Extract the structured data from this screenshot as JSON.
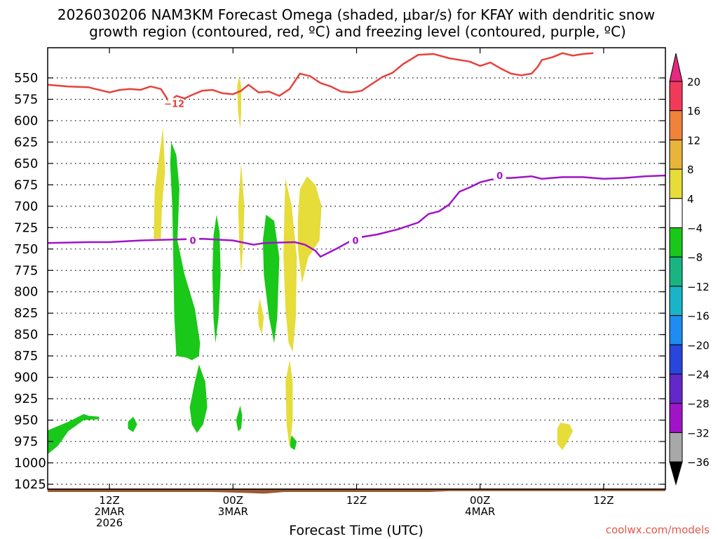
{
  "chart_data": {
    "type": "time-height",
    "title_line1": "2026030206 NAM3KM Forecast Omega (shaded, μbar/s) for KFAY with dendritic snow",
    "title_line2": "growth region (contoured, red, ºC) and freezing level (contoured, purple, ºC)",
    "xlabel": "Forecast Time (UTC)",
    "credit": "coolwx.com/models",
    "x_range_hours": [
      -3,
      57
    ],
    "y_range_mb": [
      520,
      1035
    ],
    "y_ticks": [
      550,
      575,
      600,
      625,
      650,
      675,
      700,
      725,
      750,
      775,
      800,
      825,
      850,
      875,
      900,
      925,
      950,
      975,
      1000,
      1025
    ],
    "x_ticks": [
      {
        "hour": 3,
        "lines": [
          "12Z",
          "2MAR",
          "2026"
        ]
      },
      {
        "hour": 15,
        "lines": [
          "00Z",
          "3MAR"
        ]
      },
      {
        "hour": 27,
        "lines": [
          "12Z"
        ]
      },
      {
        "hour": 39,
        "lines": [
          "00Z",
          "4MAR"
        ]
      },
      {
        "hour": 51,
        "lines": [
          "12Z"
        ]
      }
    ],
    "colorbar": {
      "labels": [
        "20",
        "16",
        "12",
        "8",
        "4",
        "−4",
        "−8",
        "−12",
        "−16",
        "−20",
        "−24",
        "−28",
        "−32",
        "−36"
      ],
      "colors": [
        "#f03a5a",
        "#f0823a",
        "#e8b43a",
        "#e6dc3a",
        "#ffffff",
        "#19c819",
        "#19b482",
        "#19b4c8",
        "#1e8cf0",
        "#2846dc",
        "#6428c8",
        "#a014c8",
        "#a8a8a8"
      ],
      "top_arrow_color": "#e6287f",
      "bottom_arrow_color": "#000000"
    },
    "contour_labels": {
      "dgz": "−12",
      "freezing": "0"
    },
    "dgz_minus12_line": {
      "color": "#e8413c",
      "points": [
        [
          -3,
          558
        ],
        [
          -1,
          560
        ],
        [
          1,
          561
        ],
        [
          2,
          564
        ],
        [
          3,
          567
        ],
        [
          4,
          564
        ],
        [
          5,
          563
        ],
        [
          6,
          564
        ],
        [
          7,
          560
        ],
        [
          8,
          563
        ],
        [
          8.8,
          578
        ],
        [
          9.5,
          571
        ],
        [
          10.3,
          574
        ],
        [
          11,
          570
        ],
        [
          12,
          565
        ],
        [
          13,
          564
        ],
        [
          14,
          568
        ],
        [
          15,
          569
        ],
        [
          15.8,
          565
        ],
        [
          16.5,
          558
        ],
        [
          17.5,
          567
        ],
        [
          18.5,
          566
        ],
        [
          19.5,
          571
        ],
        [
          20.5,
          563
        ],
        [
          21.5,
          545
        ],
        [
          22.5,
          548
        ],
        [
          23.5,
          556
        ],
        [
          24.5,
          560
        ],
        [
          25.5,
          566
        ],
        [
          26.5,
          567
        ],
        [
          27.5,
          565
        ],
        [
          28.5,
          557
        ],
        [
          29.5,
          549
        ],
        [
          30.5,
          544
        ],
        [
          31.5,
          534
        ],
        [
          33,
          523
        ],
        [
          34.5,
          522
        ],
        [
          36,
          527
        ],
        [
          38,
          531
        ],
        [
          39,
          536
        ],
        [
          40,
          532
        ],
        [
          41,
          539
        ],
        [
          42,
          545
        ],
        [
          43,
          547
        ],
        [
          44,
          545
        ],
        [
          44.6,
          537
        ],
        [
          45,
          529
        ],
        [
          46,
          526
        ],
        [
          47,
          521
        ],
        [
          48,
          524
        ],
        [
          49,
          522
        ],
        [
          50,
          521
        ]
      ]
    },
    "freezing_line": {
      "color": "#a014c8",
      "points": [
        [
          -3,
          743
        ],
        [
          1,
          742
        ],
        [
          3,
          742
        ],
        [
          6,
          740
        ],
        [
          9,
          739
        ],
        [
          12,
          738
        ],
        [
          15,
          740
        ],
        [
          17,
          745
        ],
        [
          18,
          743
        ],
        [
          21,
          742
        ],
        [
          22,
          745
        ],
        [
          23,
          752
        ],
        [
          23.5,
          759
        ],
        [
          25,
          750
        ],
        [
          27,
          737
        ],
        [
          29,
          733
        ],
        [
          31,
          727
        ],
        [
          32,
          723
        ],
        [
          33,
          719
        ],
        [
          34,
          709
        ],
        [
          35,
          706
        ],
        [
          36,
          698
        ],
        [
          37,
          683
        ],
        [
          38,
          678
        ],
        [
          39,
          672
        ],
        [
          40,
          669
        ],
        [
          41,
          667
        ],
        [
          42,
          667
        ],
        [
          44,
          665
        ],
        [
          45,
          668
        ],
        [
          47,
          666
        ],
        [
          49,
          666
        ],
        [
          51,
          668
        ],
        [
          53,
          667
        ],
        [
          55,
          665
        ],
        [
          57,
          664
        ]
      ]
    },
    "omega_regions": [
      {
        "color": "#19c819",
        "points": [
          [
            -3,
            962
          ],
          [
            -1,
            952
          ],
          [
            0.5,
            943
          ],
          [
            1,
            945
          ],
          [
            2,
            946
          ],
          [
            2,
            949
          ],
          [
            0.5,
            950
          ],
          [
            -1,
            963
          ],
          [
            -2,
            980
          ],
          [
            -3,
            990
          ]
        ]
      },
      {
        "color": "#19c819",
        "points": [
          [
            4.8,
            952
          ],
          [
            5.3,
            946
          ],
          [
            5.7,
            955
          ],
          [
            5.3,
            964
          ],
          [
            4.8,
            960
          ]
        ]
      },
      {
        "color": "#19c819",
        "points": [
          [
            9,
            625
          ],
          [
            9.5,
            640
          ],
          [
            9.8,
            680
          ],
          [
            9.6,
            740
          ],
          [
            10.3,
            780
          ],
          [
            11.3,
            820
          ],
          [
            11.8,
            860
          ],
          [
            11.7,
            875
          ],
          [
            11,
            880
          ],
          [
            10.5,
            877
          ],
          [
            9.5,
            875
          ],
          [
            9.3,
            830
          ],
          [
            9.2,
            760
          ],
          [
            9.1,
            700
          ],
          [
            8.9,
            650
          ]
        ]
      },
      {
        "color": "#19c819",
        "points": [
          [
            11.7,
            885
          ],
          [
            12.3,
            905
          ],
          [
            12.5,
            935
          ],
          [
            12.1,
            955
          ],
          [
            11.5,
            965
          ],
          [
            11,
            955
          ],
          [
            10.8,
            935
          ],
          [
            11.3,
            905
          ]
        ]
      },
      {
        "color": "#19c819",
        "points": [
          [
            13.4,
            710
          ],
          [
            13.7,
            730
          ],
          [
            13.8,
            780
          ],
          [
            13.6,
            830
          ],
          [
            13.3,
            860
          ],
          [
            13.1,
            830
          ],
          [
            13,
            780
          ],
          [
            13.1,
            735
          ]
        ]
      },
      {
        "color": "#19c819",
        "points": [
          [
            15.7,
            933
          ],
          [
            15.9,
            945
          ],
          [
            15.8,
            960
          ],
          [
            15.5,
            963
          ],
          [
            15.3,
            950
          ]
        ]
      },
      {
        "color": "#19c819",
        "points": [
          [
            18.2,
            710
          ],
          [
            19,
            717
          ],
          [
            19.5,
            760
          ],
          [
            19.3,
            830
          ],
          [
            19,
            860
          ],
          [
            18.5,
            830
          ],
          [
            18,
            780
          ],
          [
            17.9,
            740
          ]
        ]
      },
      {
        "color": "#19c819",
        "points": [
          [
            20.7,
            968
          ],
          [
            21.2,
            975
          ],
          [
            21,
            985
          ],
          [
            20.6,
            982
          ],
          [
            20.5,
            975
          ]
        ]
      },
      {
        "color": "#e6dc3a",
        "points": [
          [
            7.4,
            680
          ],
          [
            8.2,
            608
          ],
          [
            8.4,
            660
          ],
          [
            8.1,
            700
          ],
          [
            8,
            738
          ],
          [
            7.3,
            738
          ]
        ]
      },
      {
        "color": "#e6dc3a",
        "points": [
          [
            15.6,
            548
          ],
          [
            15.8,
            560
          ],
          [
            15.8,
            590
          ],
          [
            15.7,
            610
          ],
          [
            15.5,
            590
          ],
          [
            15.4,
            560
          ]
        ]
      },
      {
        "color": "#e6dc3a",
        "points": [
          [
            15.8,
            650
          ],
          [
            16.1,
            700
          ],
          [
            16,
            740
          ],
          [
            15.8,
            780
          ],
          [
            15.6,
            740
          ],
          [
            15.5,
            700
          ]
        ]
      },
      {
        "color": "#e6dc3a",
        "points": [
          [
            17.6,
            808
          ],
          [
            18,
            830
          ],
          [
            17.8,
            850
          ],
          [
            17.5,
            840
          ],
          [
            17.4,
            822
          ]
        ]
      },
      {
        "color": "#e6dc3a",
        "points": [
          [
            20.1,
            668
          ],
          [
            20.7,
            700
          ],
          [
            21.2,
            760
          ],
          [
            21.1,
            830
          ],
          [
            20.8,
            870
          ],
          [
            20.4,
            860
          ],
          [
            20.1,
            820
          ],
          [
            19.9,
            760
          ],
          [
            20,
            700
          ]
        ]
      },
      {
        "color": "#e6dc3a",
        "points": [
          [
            21.5,
            680
          ],
          [
            22.2,
            665
          ],
          [
            23,
            675
          ],
          [
            23.6,
            700
          ],
          [
            23.4,
            740
          ],
          [
            22.3,
            760
          ],
          [
            21.7,
            790
          ],
          [
            21.3,
            750
          ],
          [
            21.3,
            715
          ]
        ]
      },
      {
        "color": "#e6dc3a",
        "points": [
          [
            20.5,
            880
          ],
          [
            20.8,
            905
          ],
          [
            20.8,
            950
          ],
          [
            20.5,
            983
          ],
          [
            20.2,
            955
          ],
          [
            20.1,
            905
          ]
        ]
      },
      {
        "color": "#e6dc3a",
        "points": [
          [
            46.5,
            960
          ],
          [
            46.8,
            953
          ],
          [
            47.7,
            955
          ],
          [
            48,
            963
          ],
          [
            47.5,
            975
          ],
          [
            47,
            985
          ],
          [
            46.5,
            978
          ]
        ]
      }
    ],
    "terrain_color": "#9a5a34"
  }
}
